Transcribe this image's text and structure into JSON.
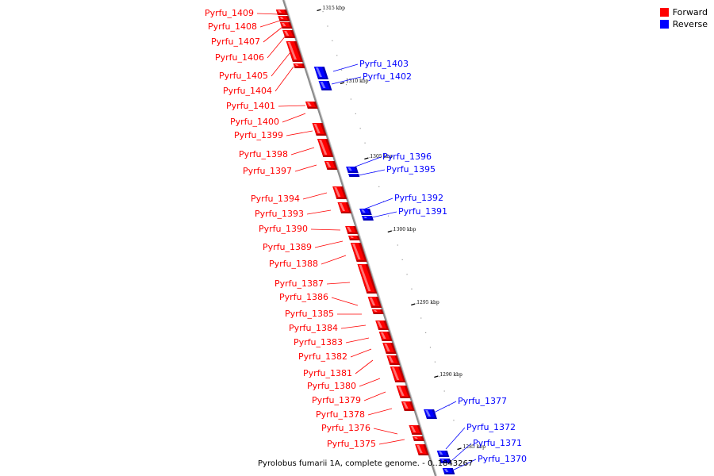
{
  "legend": {
    "forward_label": "Forward",
    "reverse_label": "Reverse",
    "forward_color": "#ff0000",
    "reverse_color": "#0000ff"
  },
  "caption": "Pyrolobus fumarii 1A, complete genome. - 0..1843267",
  "ticks": [
    "1315 kbp",
    "1310 kbp",
    "1305 kbp",
    "1300 kbp",
    "1295 kbp",
    "1290 kbp",
    "1285 kbp"
  ],
  "forward_genes": [
    "Pyrfu_1409",
    "Pyrfu_1408",
    "Pyrfu_1407",
    "Pyrfu_1406",
    "Pyrfu_1405",
    "Pyrfu_1404",
    "Pyrfu_1401",
    "Pyrfu_1400",
    "Pyrfu_1399",
    "Pyrfu_1398",
    "Pyrfu_1397",
    "Pyrfu_1394",
    "Pyrfu_1393",
    "Pyrfu_1390",
    "Pyrfu_1389",
    "Pyrfu_1388",
    "Pyrfu_1387",
    "Pyrfu_1386",
    "Pyrfu_1385",
    "Pyrfu_1384",
    "Pyrfu_1383",
    "Pyrfu_1382",
    "Pyrfu_1381",
    "Pyrfu_1380",
    "Pyrfu_1379",
    "Pyrfu_1378",
    "Pyrfu_1376",
    "Pyrfu_1375"
  ],
  "reverse_genes": [
    "Pyrfu_1403",
    "Pyrfu_1402",
    "Pyrfu_1396",
    "Pyrfu_1395",
    "Pyrfu_1392",
    "Pyrfu_1391",
    "Pyrfu_1377",
    "Pyrfu_1372",
    "Pyrfu_1371",
    "Pyrfu_1370"
  ]
}
